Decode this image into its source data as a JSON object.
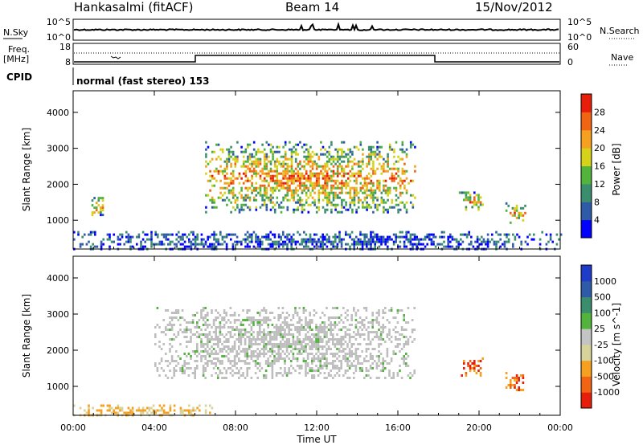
{
  "header": {
    "station": "Hankasalmi (fitACF)",
    "beam": "Beam 14",
    "date": "15/Nov/2012"
  },
  "noise_panel": {
    "left_label": "N.Sky",
    "right_label": "N.Search",
    "left_ticks": [
      "10^5",
      "10^0"
    ],
    "right_ticks": [
      "10^5",
      "10^0"
    ]
  },
  "freq_panel": {
    "label_freq": "Freq.",
    "label_unit": "[MHz]",
    "left_ticks": [
      "18",
      "8"
    ],
    "right_ticks": [
      "60",
      "0"
    ],
    "right_label": "Nave"
  },
  "cpid": {
    "label": "CPID",
    "value": "normal (fast stereo) 153"
  },
  "colors": {
    "power_scale": [
      "#0000ff",
      "#2e5aa8",
      "#3a8e6e",
      "#52b43c",
      "#d6d21a",
      "#f5a01e",
      "#f06414",
      "#e61e0a"
    ],
    "velocity_scale": [
      "#e61e0a",
      "#f06414",
      "#f5a01e",
      "#d8d39a",
      "#c4c4c4",
      "#52b43c",
      "#3a8e6e",
      "#2e5aa8",
      "#1e3cc8"
    ],
    "ground_scatter": "#bebebe"
  },
  "chart_data": [
    {
      "type": "heatmap",
      "title": "",
      "xlabel": "Time UT",
      "ylabel": "Slant Range [km]",
      "xlim": [
        "00:00",
        "00:00"
      ],
      "ylim": [
        200,
        4600
      ],
      "x_ticks": [
        "00:00",
        "04:00",
        "08:00",
        "12:00",
        "16:00",
        "20:00",
        "00:00"
      ],
      "y_ticks": [
        1000,
        2000,
        3000,
        4000
      ],
      "colorbar": {
        "label": "Power [dB]",
        "ticks": [
          4,
          8,
          12,
          16,
          20,
          24,
          28
        ]
      },
      "regions": [
        {
          "t_start": 6.5,
          "t_end": 16.8,
          "r_low": 1200,
          "r_high": 3200,
          "level": "mixed 4-28 dB"
        },
        {
          "t_start": 0.9,
          "t_end": 1.6,
          "r_low": 1150,
          "r_high": 1650,
          "level": "4-8 dB"
        },
        {
          "t_start": 19.0,
          "t_end": 20.2,
          "r_low": 1300,
          "r_high": 1800,
          "level": "12-28 dB"
        },
        {
          "t_start": 21.3,
          "t_end": 22.3,
          "r_low": 900,
          "r_high": 1500,
          "level": "12-28 dB"
        },
        {
          "t_start": 0.0,
          "t_end": 24.0,
          "r_low": 200,
          "r_high": 700,
          "level": "near-range clutter"
        }
      ]
    },
    {
      "type": "heatmap",
      "title": "",
      "xlabel": "Time UT",
      "ylabel": "Slant Range [km]",
      "xlim": [
        "00:00",
        "00:00"
      ],
      "ylim": [
        200,
        4600
      ],
      "x_ticks": [
        "00:00",
        "04:00",
        "08:00",
        "12:00",
        "16:00",
        "20:00",
        "00:00"
      ],
      "y_ticks": [
        1000,
        2000,
        3000,
        4000
      ],
      "colorbar": {
        "label": "Velocity [m s^-1]",
        "ticks": [
          1000,
          500,
          100,
          25,
          -25,
          -100,
          -500,
          -1000
        ]
      },
      "regions": [
        {
          "t_start": 4.0,
          "t_end": 16.8,
          "r_low": 1200,
          "r_high": 3200,
          "level": "ground scatter (~0 m/s)"
        },
        {
          "t_start": 19.0,
          "t_end": 20.2,
          "r_low": 1300,
          "r_high": 1800,
          "level": "-100 to -1000 m/s"
        },
        {
          "t_start": 21.3,
          "t_end": 22.3,
          "r_low": 900,
          "r_high": 1400,
          "level": "-100 to -500 m/s"
        },
        {
          "t_start": 0.0,
          "t_end": 7.0,
          "r_low": 200,
          "r_high": 500,
          "level": "-25 to -100 m/s"
        }
      ]
    }
  ]
}
